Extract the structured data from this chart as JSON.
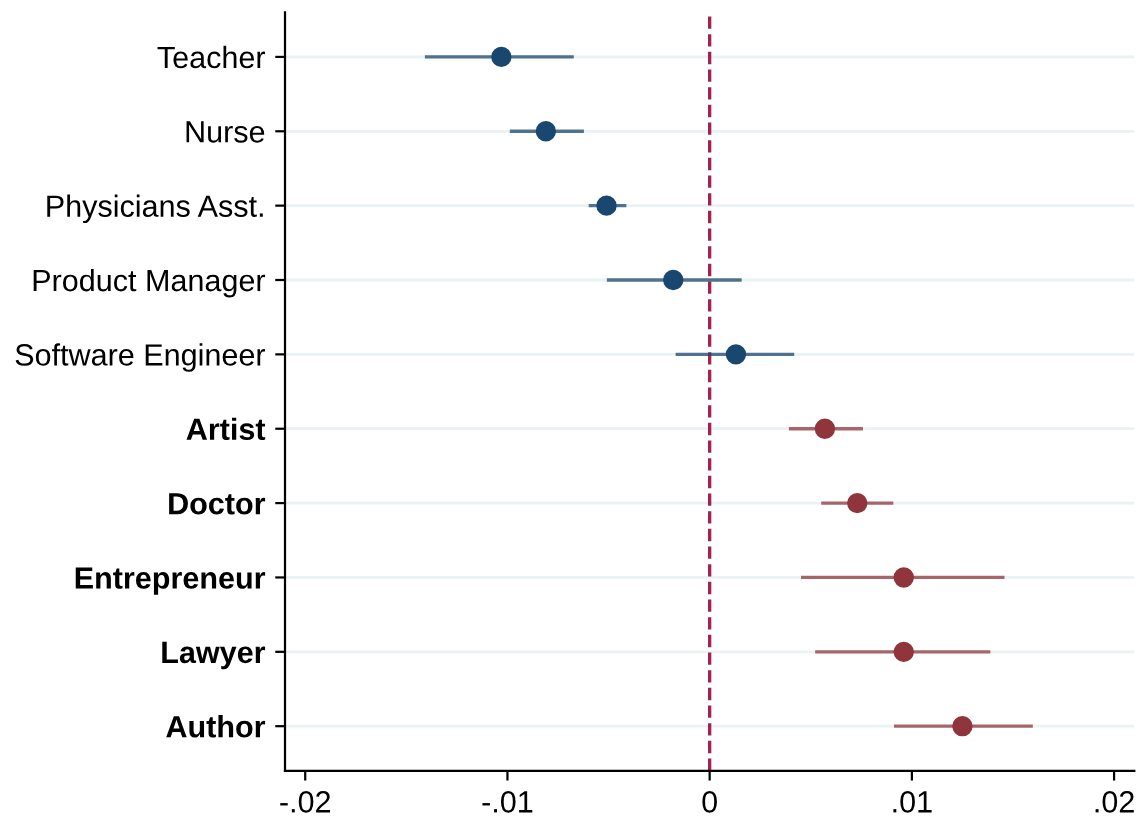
{
  "chart_data": {
    "type": "scatter",
    "orientation": "horizontal",
    "categories": [
      "Teacher",
      "Nurse",
      "Physicians Asst.",
      "Product Manager",
      "Software Engineer",
      "Artist",
      "Doctor",
      "Entrepreneur",
      "Lawyer",
      "Author"
    ],
    "series": [
      {
        "color": "#1a476f",
        "values": [
          -0.0103,
          -0.0081,
          -0.0051,
          -0.0018,
          0.0013,
          null,
          null,
          null,
          null,
          null
        ],
        "errors": [
          [
            -0.014,
            -0.0068
          ],
          [
            -0.0098,
            -0.0063
          ],
          [
            -0.0059,
            -0.0042
          ],
          [
            -0.005,
            0.0015
          ],
          [
            -0.0016,
            0.0041
          ],
          null,
          null,
          null,
          null,
          null
        ]
      },
      {
        "color": "#90353b",
        "values": [
          null,
          null,
          null,
          null,
          null,
          0.0057,
          0.0073,
          0.0096,
          0.0096,
          0.0125
        ],
        "errors": [
          null,
          null,
          null,
          null,
          null,
          [
            0.004,
            0.0075
          ],
          [
            0.0056,
            0.009
          ],
          [
            0.0046,
            0.0145
          ],
          [
            0.0053,
            0.0138
          ],
          [
            0.0092,
            0.0159
          ]
        ]
      }
    ],
    "xlim": [
      -0.021,
      0.021
    ],
    "xticks": [
      {
        "value": -0.02,
        "label": "-.02"
      },
      {
        "value": -0.01,
        "label": "-.01"
      },
      {
        "value": 0,
        "label": "0"
      },
      {
        "value": 0.01,
        "label": ".01"
      },
      {
        "value": 0.02,
        "label": ".02"
      }
    ],
    "ref_lines": [
      {
        "axis": "x",
        "value": 0,
        "color": "#a3244a",
        "line_style": "dashed"
      }
    ],
    "grid": "y",
    "marker": "circle",
    "legend": false
  }
}
